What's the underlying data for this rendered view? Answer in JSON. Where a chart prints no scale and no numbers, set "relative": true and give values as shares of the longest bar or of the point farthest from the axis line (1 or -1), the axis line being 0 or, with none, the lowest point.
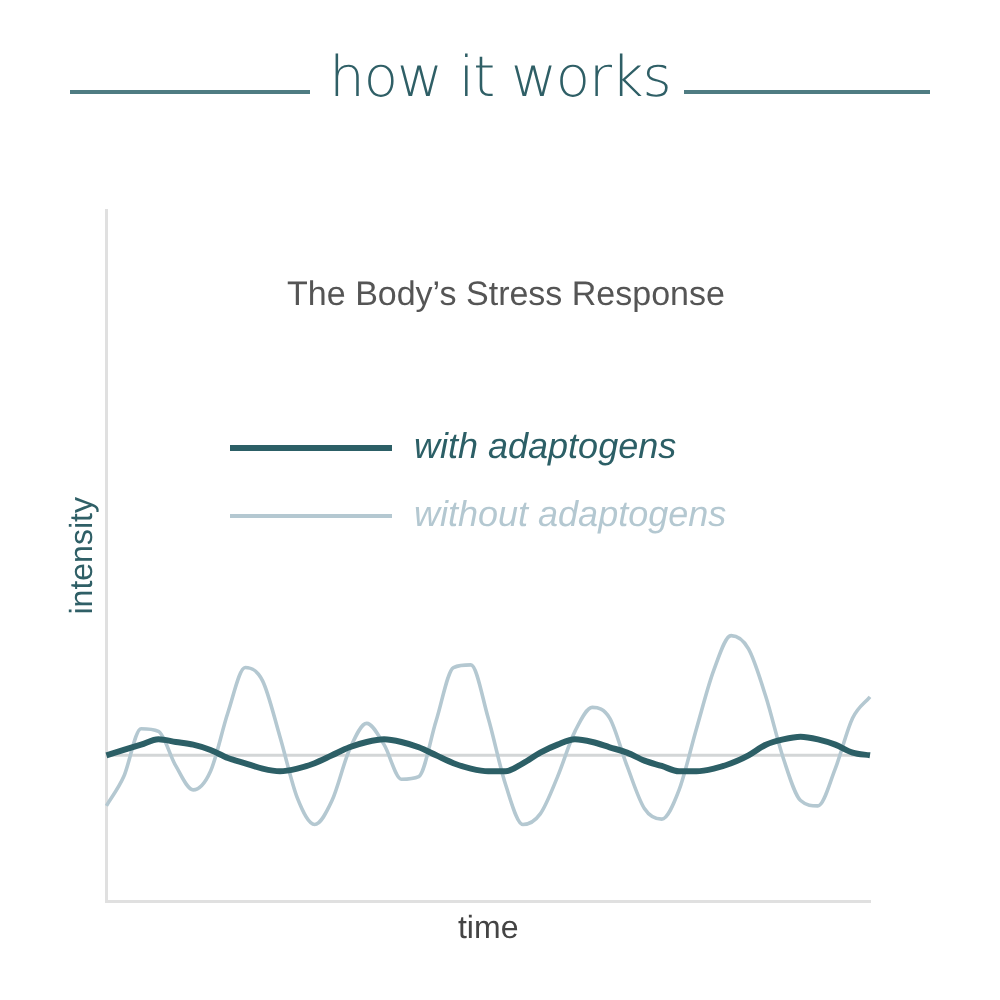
{
  "chart_data": {
    "type": "line",
    "title": "how it works",
    "subtitle": "The Body’s Stress Response",
    "xlabel": "time",
    "ylabel": "intensity",
    "relative": true,
    "legend": "top",
    "categories": [
      null,
      null,
      null,
      null,
      null,
      null,
      null,
      null,
      null,
      null,
      null,
      null,
      null,
      null,
      null,
      null,
      null,
      null,
      null,
      null,
      null,
      null,
      null,
      null,
      null,
      null,
      null,
      null,
      null,
      null,
      null,
      null,
      null,
      null,
      null,
      null,
      null,
      null,
      null,
      null,
      null,
      null,
      null,
      null,
      null
    ],
    "series": [
      {
        "name": "with adaptogens",
        "color": "#2c5f66",
        "values": [
          0.55,
          0.57,
          0.59,
          0.61,
          0.6,
          0.59,
          0.57,
          0.54,
          0.52,
          0.5,
          0.49,
          0.5,
          0.52,
          0.55,
          0.58,
          0.6,
          0.61,
          0.6,
          0.58,
          0.55,
          0.52,
          0.5,
          0.49,
          0.49,
          0.52,
          0.56,
          0.59,
          0.61,
          0.6,
          0.58,
          0.56,
          0.53,
          0.51,
          0.49,
          0.49,
          0.5,
          0.52,
          0.55,
          0.59,
          0.61,
          0.62,
          0.61,
          0.59,
          0.56,
          0.55
        ]
      },
      {
        "name": "without adaptogens",
        "color": "#b4c8d1",
        "values": [
          0.36,
          0.47,
          0.65,
          0.64,
          0.51,
          0.42,
          0.49,
          0.71,
          0.88,
          0.83,
          0.62,
          0.39,
          0.29,
          0.38,
          0.57,
          0.67,
          0.59,
          0.46,
          0.47,
          0.68,
          0.88,
          0.89,
          0.69,
          0.44,
          0.29,
          0.33,
          0.47,
          0.64,
          0.73,
          0.69,
          0.51,
          0.35,
          0.31,
          0.42,
          0.65,
          0.87,
          1.0,
          0.95,
          0.77,
          0.54,
          0.38,
          0.36,
          0.5,
          0.69,
          0.77
        ]
      }
    ],
    "ref_lines": [
      {
        "axis": "y",
        "value": 0.55,
        "color": "#d3d6d7"
      }
    ]
  }
}
